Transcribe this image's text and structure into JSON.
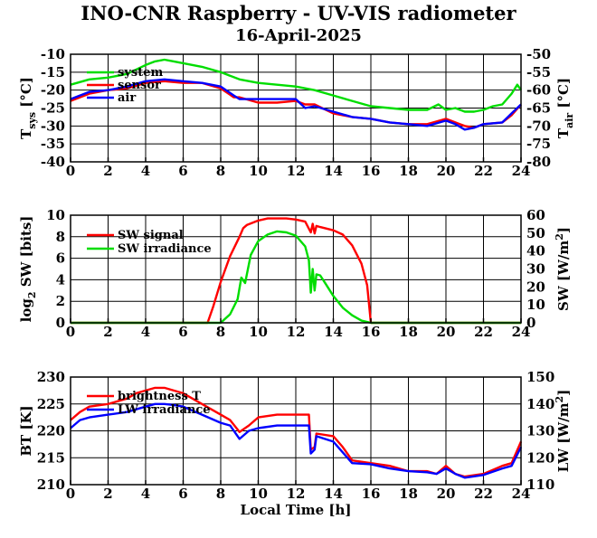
{
  "title": "INO-CNR Raspberry - UV-VIS radiometer",
  "subtitle": "16-April-2025",
  "colors": {
    "red": "#ff0000",
    "green": "#00dd00",
    "blue": "#0000ff",
    "axis": "#000000"
  },
  "chart_data": [
    {
      "type": "line",
      "ylabel_left": "T_sys [°C]",
      "ylabel_right": "T_air [°C]",
      "xlim": [
        0,
        24
      ],
      "ylim_left": [
        -40,
        -10
      ],
      "ylim_right": [
        -80,
        -50
      ],
      "x_ticks": [
        "0",
        "2",
        "4",
        "6",
        "8",
        "10",
        "12",
        "14",
        "16",
        "18",
        "20",
        "22",
        "24"
      ],
      "y_ticks_left": [
        "-10",
        "-15",
        "-20",
        "-25",
        "-30",
        "-35",
        "-40"
      ],
      "y_ticks_right": [
        "-50",
        "-55",
        "-60",
        "-65",
        "-70",
        "-75",
        "-80"
      ],
      "legend": [
        "system",
        "sensor",
        "air"
      ],
      "series": [
        {
          "name": "system",
          "axis": "left",
          "color": "green",
          "x": [
            0,
            1,
            2,
            3,
            4,
            4.5,
            5,
            5.5,
            6,
            7,
            8,
            9,
            10,
            11,
            12,
            13,
            14,
            15,
            16,
            17,
            18,
            19,
            19.6,
            20,
            20.5,
            21,
            21.5,
            22,
            22.5,
            23,
            23.5,
            23.8,
            24
          ],
          "y": [
            -18.5,
            -17,
            -16.5,
            -15.5,
            -13,
            -12,
            -11.5,
            -12,
            -12.5,
            -13.5,
            -15,
            -17,
            -18,
            -18.5,
            -19,
            -20,
            -21.5,
            -23,
            -24.5,
            -25,
            -25.5,
            -25.5,
            -24,
            -25.5,
            -25,
            -26,
            -26,
            -25.5,
            -24.5,
            -24,
            -21,
            -18.5,
            -20
          ]
        },
        {
          "name": "sensor",
          "axis": "left",
          "color": "red",
          "x": [
            0,
            1,
            2,
            3,
            4,
            5,
            6,
            7,
            8,
            8.7,
            9,
            10,
            11,
            12,
            12.5,
            13,
            14,
            15,
            16,
            17,
            18,
            19,
            20,
            20.5,
            21,
            21.5,
            22,
            23,
            23.5,
            24
          ],
          "y": [
            -23,
            -21,
            -20,
            -19.5,
            -18,
            -17.5,
            -18,
            -18,
            -19.5,
            -22,
            -22,
            -23.5,
            -23.5,
            -23,
            -24,
            -24,
            -26.5,
            -27.5,
            -28,
            -29,
            -29.5,
            -29.5,
            -28,
            -29,
            -30,
            -30.5,
            -29.5,
            -29,
            -27,
            -24
          ]
        },
        {
          "name": "air",
          "axis": "left",
          "color": "blue",
          "x": [
            0,
            1,
            2,
            3,
            4,
            5,
            6,
            7,
            8,
            8.7,
            9,
            10,
            11,
            12,
            12.5,
            13,
            14,
            15,
            16,
            17,
            18,
            19,
            20,
            20.5,
            21,
            21.5,
            22,
            23,
            23.5,
            24
          ],
          "y": [
            -22.5,
            -20.5,
            -20,
            -19,
            -17.5,
            -17,
            -17.5,
            -18,
            -19,
            -21.5,
            -22.5,
            -22.5,
            -22.5,
            -22.5,
            -25,
            -24.5,
            -26,
            -27.5,
            -28,
            -29,
            -29.5,
            -30,
            -28.5,
            -29.5,
            -31,
            -30.5,
            -29.5,
            -29,
            -26.5,
            -24
          ]
        }
      ]
    },
    {
      "type": "line",
      "ylabel_left": "log2 SW [bits]",
      "ylabel_right": "SW [W/m2]",
      "xlim": [
        0,
        24
      ],
      "ylim_left": [
        0,
        10
      ],
      "ylim_right": [
        0,
        60
      ],
      "x_ticks": [
        "0",
        "2",
        "4",
        "6",
        "8",
        "10",
        "12",
        "14",
        "16",
        "18",
        "20",
        "22",
        "24"
      ],
      "y_ticks_left": [
        "10",
        "8",
        "6",
        "4",
        "2",
        "0"
      ],
      "y_ticks_right": [
        "60",
        "50",
        "40",
        "30",
        "20",
        "10",
        "0"
      ],
      "legend": [
        "SW signal",
        "SW irradiance"
      ],
      "series": [
        {
          "name": "SW signal",
          "axis": "left",
          "color": "red",
          "x": [
            0,
            7.3,
            7.6,
            8,
            8.5,
            9,
            9.2,
            9.4,
            10,
            10.5,
            11,
            11.5,
            12,
            12.5,
            12.8,
            12.9,
            13,
            13.1,
            13.3,
            14,
            14.5,
            15,
            15.5,
            15.8,
            16,
            24
          ],
          "y": [
            0,
            0,
            1.5,
            3.8,
            6.2,
            8,
            8.8,
            9.1,
            9.5,
            9.7,
            9.7,
            9.7,
            9.6,
            9.4,
            8.4,
            9.2,
            8.3,
            9,
            8.9,
            8.6,
            8.2,
            7.2,
            5.5,
            3.5,
            0,
            0
          ]
        },
        {
          "name": "SW irradiance",
          "axis": "left",
          "color": "green",
          "x": [
            0,
            8,
            8.5,
            8.9,
            9.1,
            9.3,
            9.6,
            10,
            10.5,
            11,
            11.5,
            12,
            12.5,
            12.7,
            12.8,
            12.9,
            13,
            13.1,
            13.3,
            13.6,
            14,
            14.5,
            15,
            15.5,
            16,
            24
          ],
          "y": [
            0,
            0,
            0.8,
            2.2,
            4.2,
            3.7,
            6.3,
            7.6,
            8.2,
            8.5,
            8.4,
            8.1,
            7.1,
            5.8,
            2.8,
            5,
            3,
            4.5,
            4.4,
            3.6,
            2.5,
            1.4,
            0.7,
            0.2,
            0,
            0
          ]
        }
      ]
    },
    {
      "type": "line",
      "xlabel": "Local Time [h]",
      "ylabel_left": "BT [K]",
      "ylabel_right": "LW [W/m2]",
      "xlim": [
        0,
        24
      ],
      "ylim_left": [
        210,
        230
      ],
      "ylim_right": [
        110,
        150
      ],
      "x_ticks": [
        "0",
        "2",
        "4",
        "6",
        "8",
        "10",
        "12",
        "14",
        "16",
        "18",
        "20",
        "22",
        "24"
      ],
      "y_ticks_left": [
        "230",
        "225",
        "220",
        "215",
        "210"
      ],
      "y_ticks_right": [
        "150",
        "140",
        "130",
        "120",
        "110"
      ],
      "legend": [
        "brightness T",
        "LW irradiance"
      ],
      "series": [
        {
          "name": "brightness T",
          "axis": "left",
          "color": "red",
          "x": [
            0,
            0.5,
            1,
            2,
            3,
            3.5,
            4,
            4.5,
            5,
            5.5,
            6,
            7,
            8,
            8.5,
            9,
            9.5,
            10,
            11,
            12,
            12.7,
            12.8,
            13,
            13.1,
            14,
            14.5,
            15,
            16,
            17,
            18,
            19,
            19.5,
            20,
            20.5,
            21,
            22,
            23,
            23.5,
            24
          ],
          "y": [
            222,
            223.5,
            224.5,
            225,
            226,
            227,
            227.5,
            228,
            228,
            227.5,
            227,
            225,
            223,
            222,
            219.8,
            221,
            222.5,
            223,
            223,
            223,
            216.5,
            217,
            219.5,
            219,
            217,
            214.5,
            214,
            213.5,
            212.5,
            212.5,
            212,
            213.5,
            212,
            211.5,
            212,
            213.5,
            214,
            218
          ]
        },
        {
          "name": "LW irradiance",
          "axis": "left",
          "color": "blue",
          "x": [
            0,
            0.5,
            1,
            2,
            3,
            3.5,
            4,
            4.5,
            5,
            5.5,
            6,
            7,
            8,
            8.5,
            9,
            9.5,
            10,
            11,
            12,
            12.7,
            12.8,
            13,
            13.1,
            14,
            14.5,
            15,
            16,
            17,
            18,
            19,
            19.5,
            20,
            20.5,
            21,
            22,
            23,
            23.5,
            24
          ],
          "y": [
            220.5,
            222,
            222.5,
            223,
            223.5,
            224,
            224.5,
            225,
            225,
            224.8,
            224.5,
            223,
            221.5,
            221,
            218.5,
            220,
            220.5,
            221,
            221,
            221,
            215.8,
            216.5,
            219,
            218,
            216,
            214,
            213.8,
            213,
            212.5,
            212.3,
            212,
            213,
            212,
            211.3,
            211.8,
            213,
            213.5,
            217
          ]
        }
      ]
    }
  ]
}
